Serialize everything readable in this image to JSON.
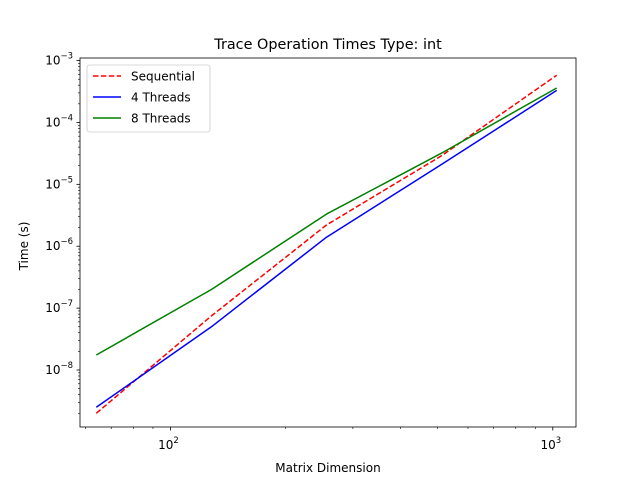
{
  "chart_data": {
    "type": "line",
    "title": "Trace Operation Times Type: int",
    "xlabel": "Matrix Dimension",
    "ylabel": "Time (s)",
    "xscale": "log",
    "yscale": "log",
    "xlim": [
      58,
      1150
    ],
    "ylim": [
      1.2e-09,
      0.0011
    ],
    "x": [
      64,
      128,
      256,
      512,
      1024
    ],
    "xticks": [
      {
        "value": 100,
        "base": "10",
        "exp": "2"
      },
      {
        "value": 1000,
        "base": "10",
        "exp": "3"
      }
    ],
    "yticks": [
      {
        "value": 1e-08,
        "base": "10",
        "exp": "−8"
      },
      {
        "value": 1e-07,
        "base": "10",
        "exp": "−7"
      },
      {
        "value": 1e-06,
        "base": "10",
        "exp": "−6"
      },
      {
        "value": 1e-05,
        "base": "10",
        "exp": "−5"
      },
      {
        "value": 0.0001,
        "base": "10",
        "exp": "−4"
      },
      {
        "value": 0.001,
        "base": "10",
        "exp": "−3"
      }
    ],
    "series": [
      {
        "name": "Sequential",
        "color": "#ff0000",
        "dash": "dashed",
        "values": [
          2e-09,
          7.5e-08,
          2.2e-06,
          2.9e-05,
          0.00058
        ]
      },
      {
        "name": "4 Threads",
        "color": "#0000ff",
        "dash": "solid",
        "values": [
          2.5e-09,
          5e-08,
          1.4e-06,
          2.1e-05,
          0.00033
        ]
      },
      {
        "name": "8 Threads",
        "color": "#008000",
        "dash": "solid",
        "values": [
          1.75e-08,
          2e-07,
          3.3e-06,
          3.2e-05,
          0.00036
        ]
      }
    ],
    "legend": "top-left",
    "grid": false
  }
}
